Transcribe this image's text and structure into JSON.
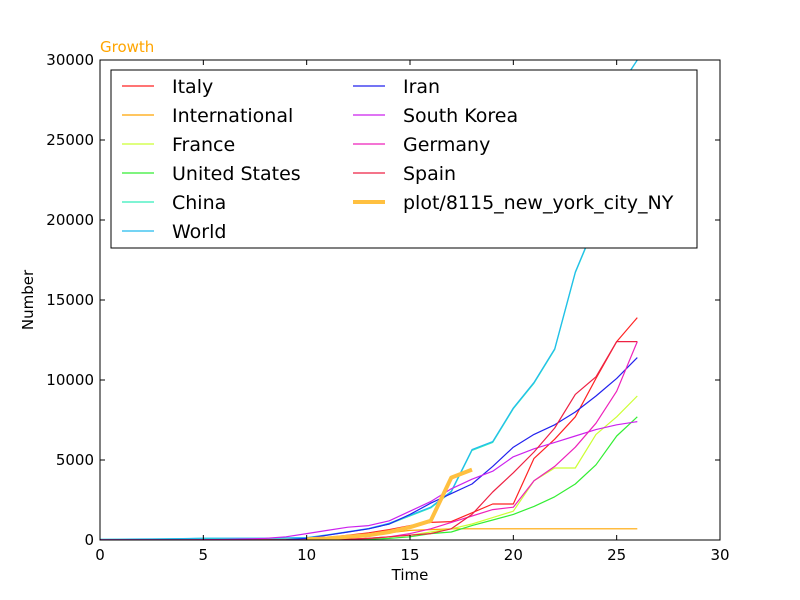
{
  "chart_data": {
    "type": "line",
    "title": "Growth",
    "title_color": "#ffa500",
    "xlabel": "Time",
    "ylabel": "Number",
    "xlim": [
      0,
      30
    ],
    "ylim": [
      0,
      30000
    ],
    "x_ticks": [
      "0",
      "5",
      "10",
      "15",
      "20",
      "25",
      "30"
    ],
    "y_ticks": [
      "0",
      "5000",
      "10000",
      "15000",
      "20000",
      "25000",
      "30000"
    ],
    "grid": false,
    "legend_position": "top",
    "legend_columns": 2,
    "series": [
      {
        "name": "Italy",
        "color": "#ff2222",
        "points": [
          [
            0,
            0
          ],
          [
            1,
            0
          ],
          [
            2,
            0
          ],
          [
            3,
            0
          ],
          [
            4,
            0
          ],
          [
            5,
            0
          ],
          [
            6,
            0
          ],
          [
            7,
            0
          ],
          [
            8,
            0
          ],
          [
            9,
            0
          ],
          [
            10,
            60
          ],
          [
            11,
            150
          ],
          [
            12,
            300
          ],
          [
            13,
            450
          ],
          [
            14,
            650
          ],
          [
            15,
            900
          ],
          [
            16,
            1100
          ],
          [
            17,
            1150
          ],
          [
            18,
            1700
          ],
          [
            19,
            2250
          ],
          [
            20,
            2250
          ],
          [
            21,
            5100
          ],
          [
            22,
            6300
          ],
          [
            23,
            7700
          ],
          [
            24,
            10100
          ],
          [
            25,
            12400
          ],
          [
            26,
            13900
          ]
        ]
      },
      {
        "name": "International",
        "color": "#ffa500",
        "points": [
          [
            0,
            0
          ],
          [
            1,
            0
          ],
          [
            2,
            0
          ],
          [
            3,
            0
          ],
          [
            4,
            0
          ],
          [
            5,
            0
          ],
          [
            6,
            0
          ],
          [
            7,
            0
          ],
          [
            8,
            20
          ],
          [
            9,
            40
          ],
          [
            10,
            70
          ],
          [
            11,
            150
          ],
          [
            12,
            250
          ],
          [
            13,
            380
          ],
          [
            14,
            450
          ],
          [
            15,
            600
          ],
          [
            16,
            650
          ],
          [
            17,
            700
          ],
          [
            18,
            700
          ],
          [
            19,
            700
          ],
          [
            20,
            700
          ],
          [
            21,
            700
          ],
          [
            22,
            700
          ],
          [
            23,
            700
          ],
          [
            24,
            700
          ],
          [
            25,
            700
          ],
          [
            26,
            700
          ]
        ]
      },
      {
        "name": "France",
        "color": "#ccff33",
        "points": [
          [
            0,
            0
          ],
          [
            1,
            0
          ],
          [
            2,
            0
          ],
          [
            3,
            0
          ],
          [
            4,
            0
          ],
          [
            5,
            0
          ],
          [
            6,
            0
          ],
          [
            7,
            0
          ],
          [
            8,
            0
          ],
          [
            9,
            0
          ],
          [
            10,
            0
          ],
          [
            11,
            20
          ],
          [
            12,
            50
          ],
          [
            13,
            100
          ],
          [
            14,
            200
          ],
          [
            15,
            300
          ],
          [
            16,
            500
          ],
          [
            17,
            700
          ],
          [
            18,
            1000
          ],
          [
            19,
            1400
          ],
          [
            20,
            1800
          ],
          [
            21,
            3700
          ],
          [
            22,
            4500
          ],
          [
            23,
            4500
          ],
          [
            24,
            6600
          ],
          [
            25,
            7700
          ],
          [
            26,
            9000
          ]
        ]
      },
      {
        "name": "United States",
        "color": "#33ee33",
        "points": [
          [
            0,
            0
          ],
          [
            1,
            0
          ],
          [
            2,
            0
          ],
          [
            3,
            0
          ],
          [
            4,
            0
          ],
          [
            5,
            0
          ],
          [
            6,
            0
          ],
          [
            7,
            0
          ],
          [
            8,
            0
          ],
          [
            9,
            0
          ],
          [
            10,
            0
          ],
          [
            11,
            10
          ],
          [
            12,
            20
          ],
          [
            13,
            50
          ],
          [
            14,
            100
          ],
          [
            15,
            200
          ],
          [
            16,
            400
          ],
          [
            17,
            500
          ],
          [
            18,
            900
          ],
          [
            19,
            1250
          ],
          [
            20,
            1600
          ],
          [
            21,
            2100
          ],
          [
            22,
            2700
          ],
          [
            23,
            3500
          ],
          [
            24,
            4700
          ],
          [
            25,
            6500
          ],
          [
            26,
            7700
          ]
        ]
      },
      {
        "name": "China",
        "color": "#33eebb",
        "points": [
          [
            0,
            30
          ],
          [
            1,
            40
          ],
          [
            2,
            50
          ],
          [
            3,
            60
          ],
          [
            4,
            80
          ],
          [
            5,
            100
          ],
          [
            6,
            100
          ],
          [
            7,
            100
          ],
          [
            8,
            100
          ],
          [
            9,
            120
          ],
          [
            10,
            130
          ],
          [
            11,
            300
          ],
          [
            12,
            500
          ],
          [
            13,
            700
          ],
          [
            14,
            1000
          ],
          [
            15,
            1500
          ],
          [
            16,
            2000
          ],
          [
            17,
            3000
          ],
          [
            18,
            5600
          ],
          [
            19,
            6100
          ],
          [
            20,
            8200
          ],
          [
            21,
            9800
          ],
          [
            22,
            11900
          ],
          [
            23,
            16700
          ],
          [
            24,
            19800
          ],
          [
            25,
            28000
          ],
          [
            26,
            30000
          ]
        ]
      },
      {
        "name": "World",
        "color": "#22bbee",
        "points": [
          [
            0,
            40
          ],
          [
            1,
            50
          ],
          [
            2,
            60
          ],
          [
            3,
            70
          ],
          [
            4,
            90
          ],
          [
            5,
            110
          ],
          [
            6,
            110
          ],
          [
            7,
            110
          ],
          [
            8,
            110
          ],
          [
            9,
            130
          ],
          [
            10,
            150
          ],
          [
            11,
            320
          ],
          [
            12,
            520
          ],
          [
            13,
            720
          ],
          [
            14,
            1050
          ],
          [
            15,
            1550
          ],
          [
            16,
            2050
          ],
          [
            17,
            3050
          ],
          [
            18,
            5650
          ],
          [
            19,
            6150
          ],
          [
            20,
            8250
          ],
          [
            21,
            9850
          ],
          [
            22,
            11950
          ],
          [
            23,
            16750
          ],
          [
            24,
            19850
          ],
          [
            25,
            28050
          ],
          [
            26,
            30000
          ]
        ]
      },
      {
        "name": "Iran",
        "color": "#2222ee",
        "points": [
          [
            0,
            0
          ],
          [
            1,
            0
          ],
          [
            2,
            0
          ],
          [
            3,
            0
          ],
          [
            4,
            0
          ],
          [
            5,
            0
          ],
          [
            6,
            0
          ],
          [
            7,
            0
          ],
          [
            8,
            0
          ],
          [
            9,
            20
          ],
          [
            10,
            100
          ],
          [
            11,
            300
          ],
          [
            12,
            500
          ],
          [
            13,
            700
          ],
          [
            14,
            1000
          ],
          [
            15,
            1600
          ],
          [
            16,
            2300
          ],
          [
            17,
            2900
          ],
          [
            18,
            3500
          ],
          [
            19,
            4600
          ],
          [
            20,
            5800
          ],
          [
            21,
            6600
          ],
          [
            22,
            7200
          ],
          [
            23,
            8000
          ],
          [
            24,
            9000
          ],
          [
            25,
            10100
          ],
          [
            26,
            11400
          ]
        ]
      },
      {
        "name": "South Korea",
        "color": "#cc22ee",
        "points": [
          [
            0,
            0
          ],
          [
            1,
            0
          ],
          [
            2,
            0
          ],
          [
            3,
            0
          ],
          [
            4,
            0
          ],
          [
            5,
            20
          ],
          [
            6,
            30
          ],
          [
            7,
            60
          ],
          [
            8,
            100
          ],
          [
            9,
            200
          ],
          [
            10,
            400
          ],
          [
            11,
            600
          ],
          [
            12,
            800
          ],
          [
            13,
            900
          ],
          [
            14,
            1200
          ],
          [
            15,
            1800
          ],
          [
            16,
            2400
          ],
          [
            17,
            3200
          ],
          [
            18,
            3800
          ],
          [
            19,
            4300
          ],
          [
            20,
            5200
          ],
          [
            21,
            5700
          ],
          [
            22,
            6100
          ],
          [
            23,
            6500
          ],
          [
            24,
            6900
          ],
          [
            25,
            7200
          ],
          [
            26,
            7400
          ]
        ]
      },
      {
        "name": "Germany",
        "color": "#ee22bb",
        "points": [
          [
            0,
            0
          ],
          [
            1,
            0
          ],
          [
            2,
            0
          ],
          [
            3,
            0
          ],
          [
            4,
            0
          ],
          [
            5,
            0
          ],
          [
            6,
            0
          ],
          [
            7,
            0
          ],
          [
            8,
            0
          ],
          [
            9,
            0
          ],
          [
            10,
            0
          ],
          [
            11,
            20
          ],
          [
            12,
            50
          ],
          [
            13,
            100
          ],
          [
            14,
            200
          ],
          [
            15,
            400
          ],
          [
            16,
            700
          ],
          [
            17,
            1100
          ],
          [
            18,
            1500
          ],
          [
            19,
            1900
          ],
          [
            20,
            2050
          ],
          [
            21,
            3700
          ],
          [
            22,
            4600
          ],
          [
            23,
            5800
          ],
          [
            24,
            7300
          ],
          [
            25,
            9300
          ],
          [
            26,
            12400
          ]
        ]
      },
      {
        "name": "Spain",
        "color": "#ee2244",
        "points": [
          [
            0,
            0
          ],
          [
            1,
            0
          ],
          [
            2,
            0
          ],
          [
            3,
            0
          ],
          [
            4,
            0
          ],
          [
            5,
            0
          ],
          [
            6,
            0
          ],
          [
            7,
            0
          ],
          [
            8,
            0
          ],
          [
            9,
            0
          ],
          [
            10,
            0
          ],
          [
            11,
            20
          ],
          [
            12,
            50
          ],
          [
            13,
            100
          ],
          [
            14,
            200
          ],
          [
            15,
            300
          ],
          [
            16,
            400
          ],
          [
            17,
            700
          ],
          [
            18,
            1600
          ],
          [
            19,
            3000
          ],
          [
            20,
            4200
          ],
          [
            21,
            5500
          ],
          [
            22,
            7000
          ],
          [
            23,
            9100
          ],
          [
            24,
            10200
          ],
          [
            25,
            12400
          ],
          [
            26,
            12400
          ]
        ]
      },
      {
        "name": "plot/8115_new_york_city_NY",
        "color": "#ffc040",
        "line_width": 4,
        "points": [
          [
            10,
            50
          ],
          [
            11,
            100
          ],
          [
            12,
            200
          ],
          [
            13,
            300
          ],
          [
            14,
            500
          ],
          [
            15,
            800
          ],
          [
            16,
            1200
          ],
          [
            17,
            3900
          ],
          [
            18,
            4400
          ]
        ]
      }
    ]
  }
}
